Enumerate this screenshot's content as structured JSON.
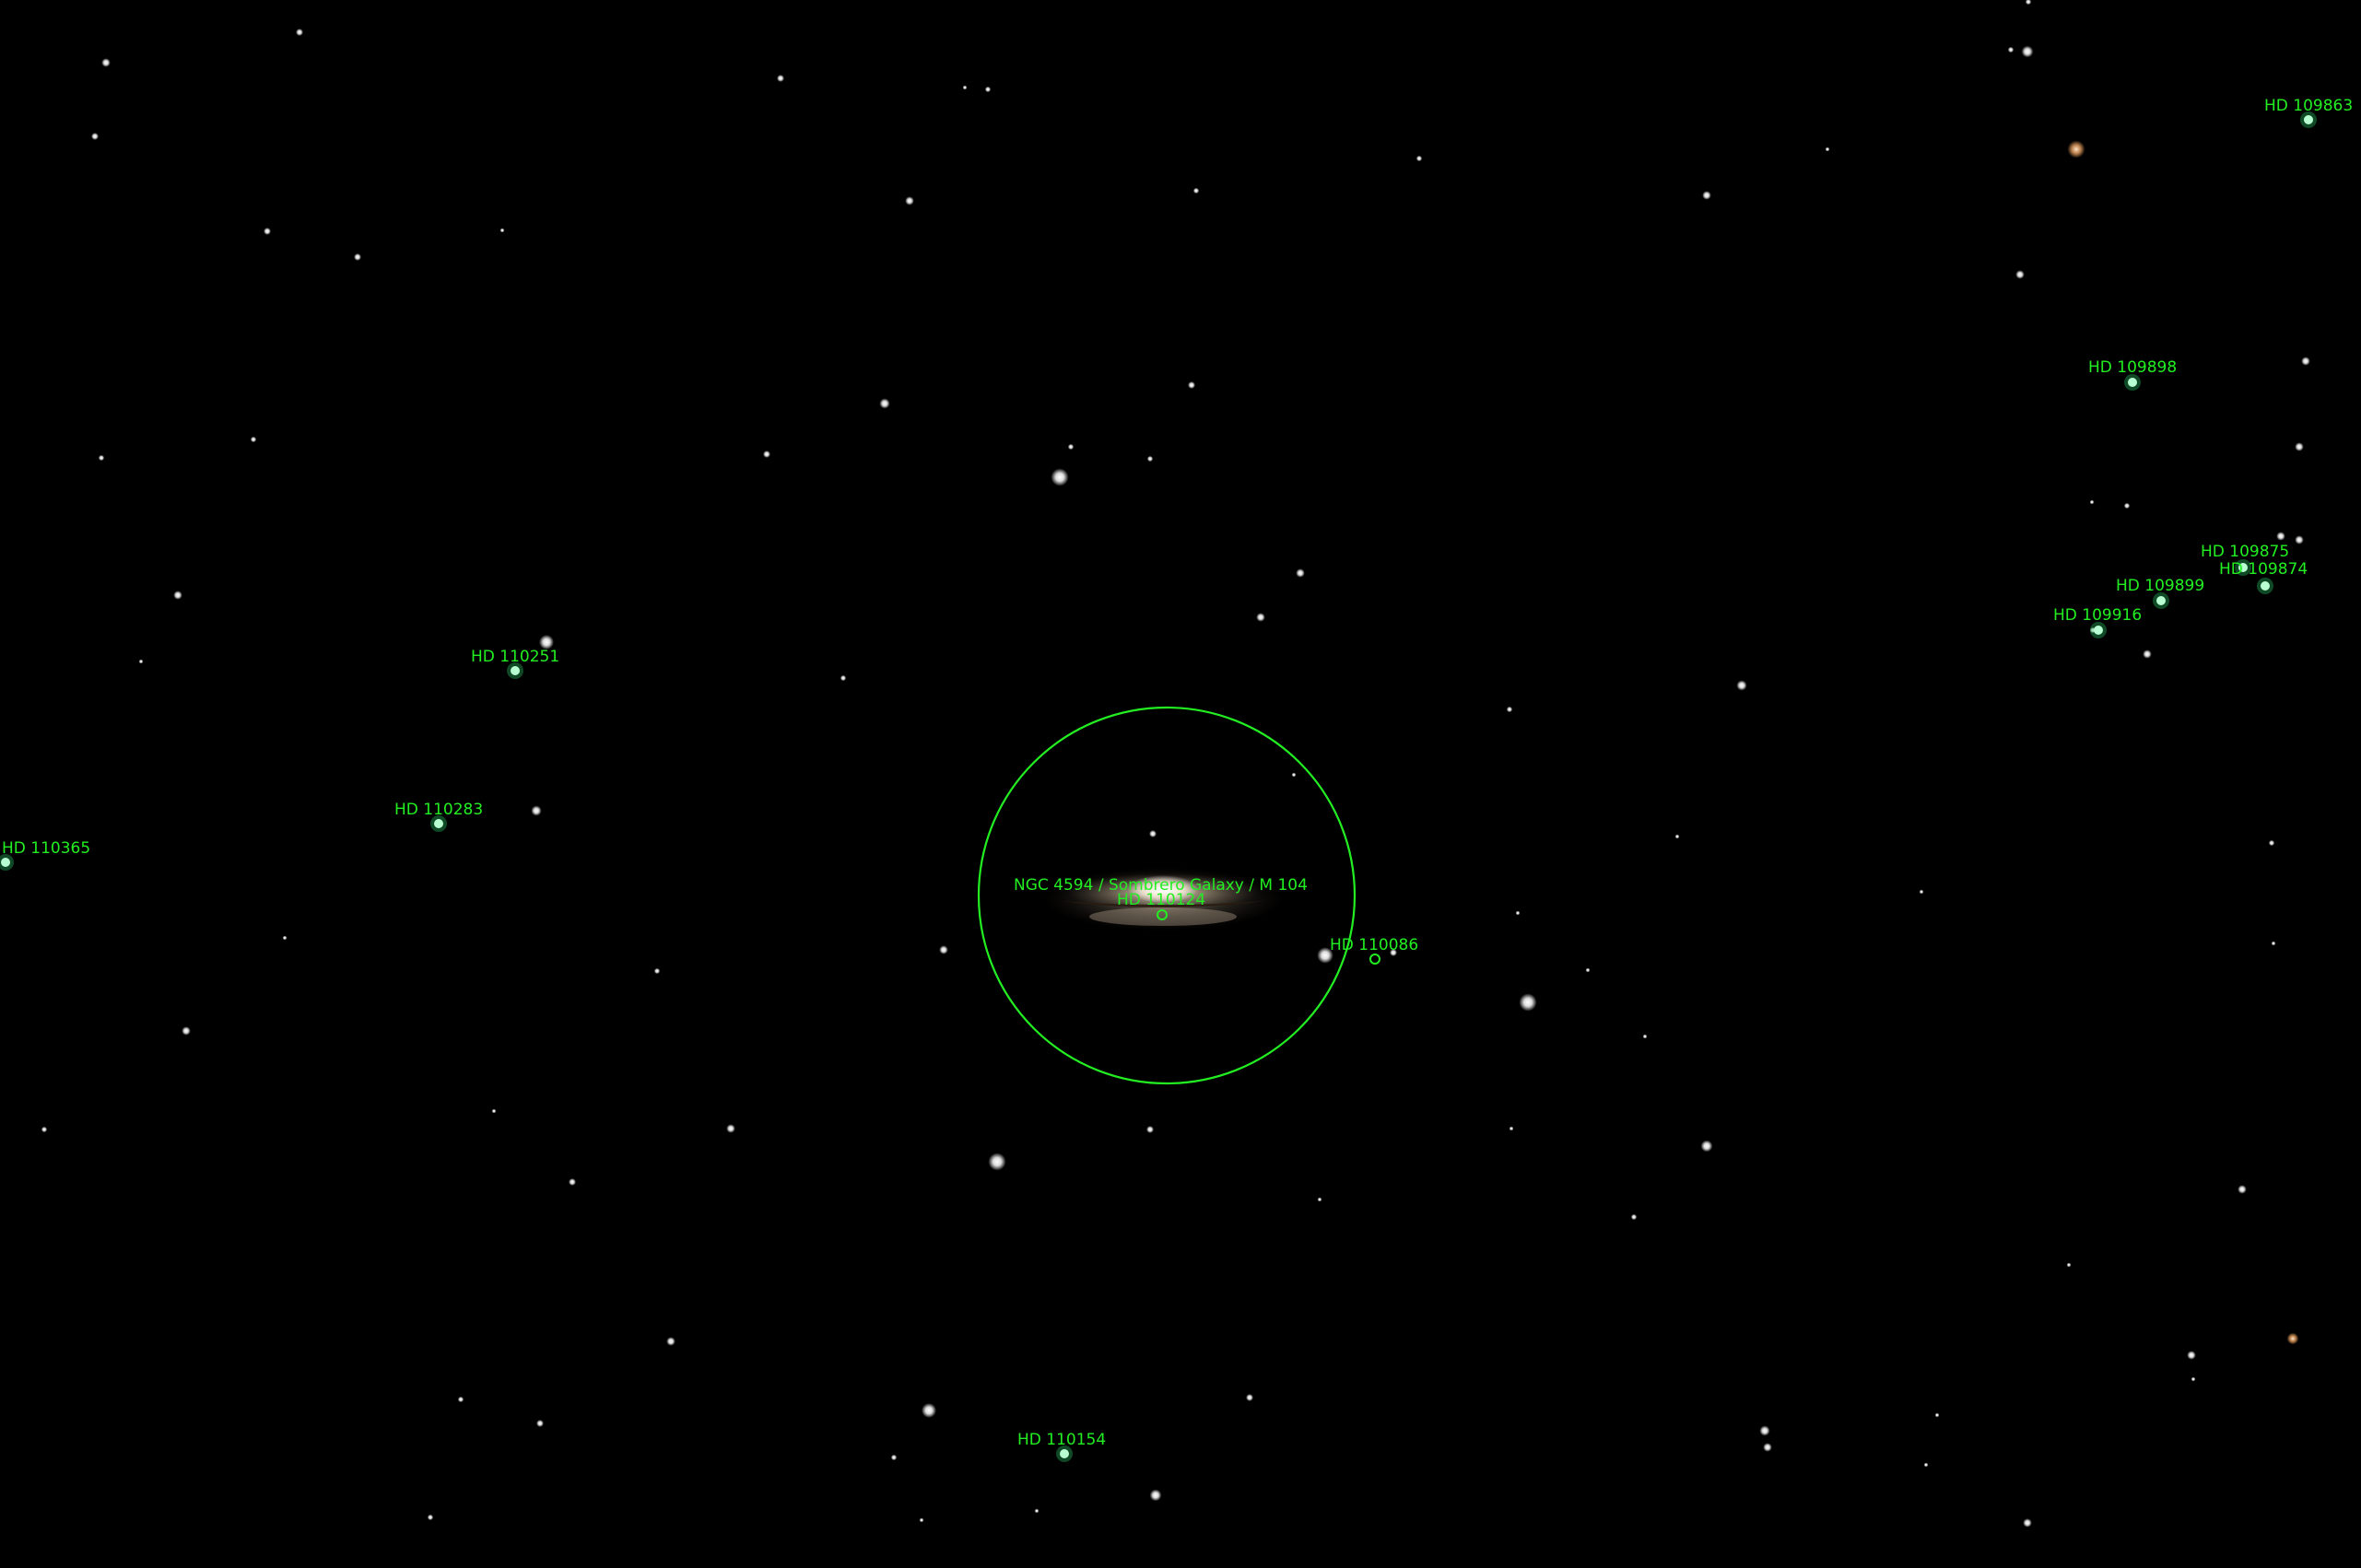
{
  "colors": {
    "background": "#000000",
    "marker": "#22ee22",
    "star": "#ffffff"
  },
  "selected_object": {
    "label": "NGC 4594 / Sombrero Galaxy / M 104"
  },
  "star_labels": [
    "HD 109863",
    "HD 109898",
    "HD 109875",
    "HD 109874",
    "HD 109899",
    "HD 109916",
    "HD 110251",
    "HD 110283",
    "HD 110365",
    "HD 110124",
    "HD 110086",
    "HD 110154"
  ]
}
